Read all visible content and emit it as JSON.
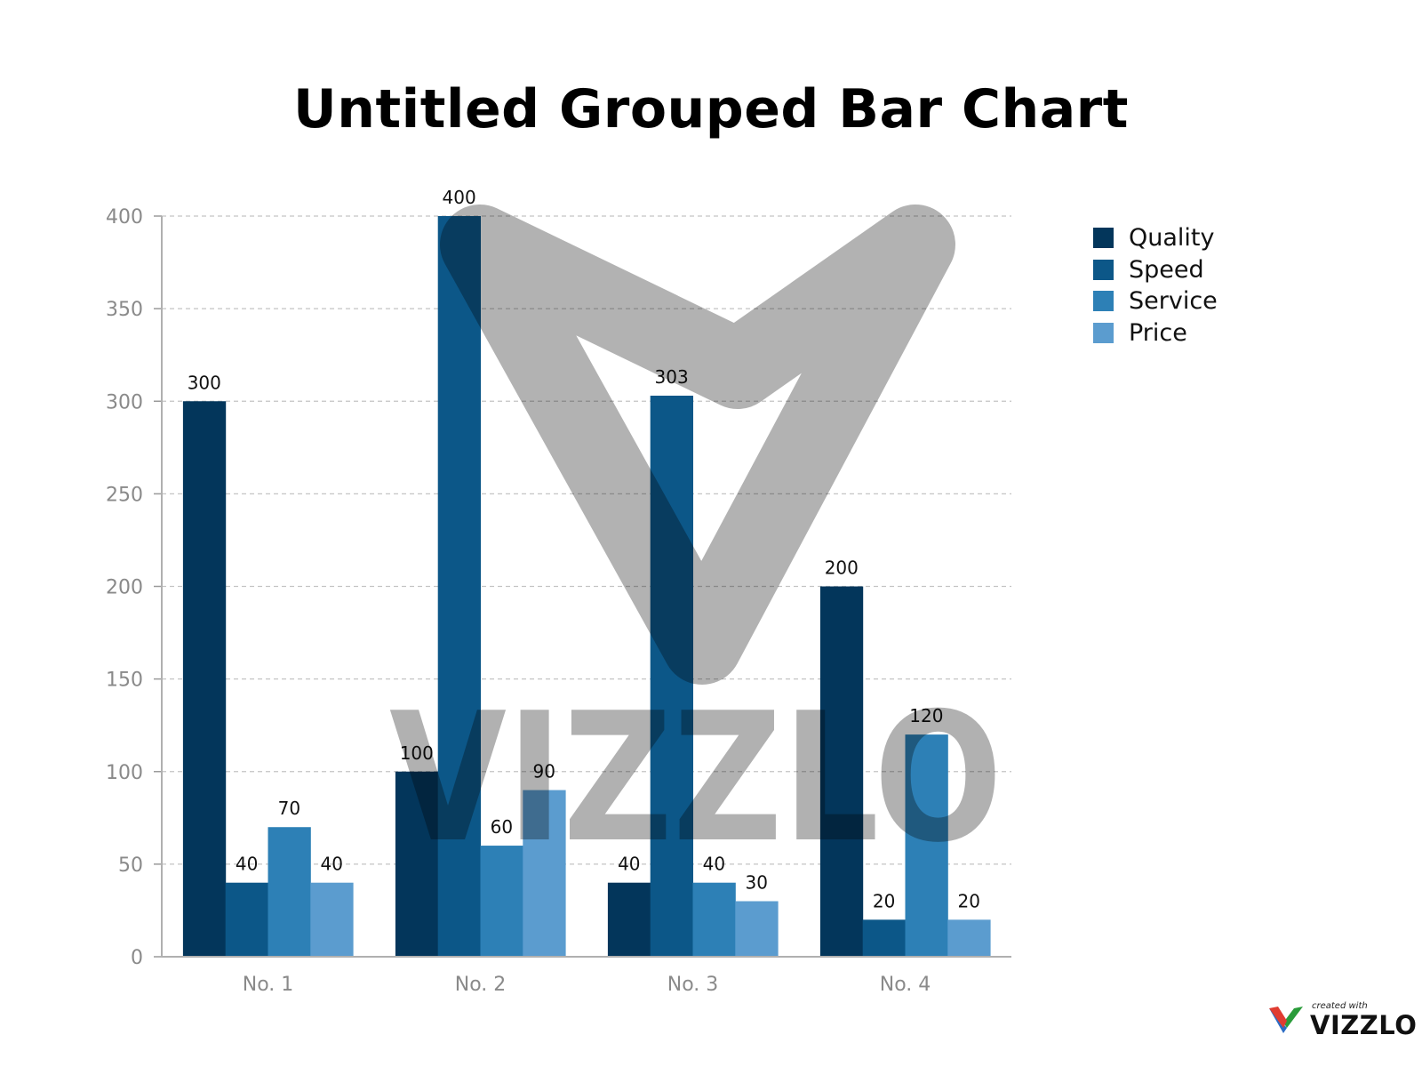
{
  "chart_data": {
    "type": "bar",
    "title": "Untitled Grouped Bar Chart",
    "xlabel": "",
    "ylabel": "",
    "categories": [
      "No. 1",
      "No. 2",
      "No. 3",
      "No. 4"
    ],
    "ylim": [
      0,
      400
    ],
    "yticks": [
      0,
      50,
      100,
      150,
      200,
      250,
      300,
      350,
      400
    ],
    "grid": true,
    "legend_position": "top-right",
    "series": [
      {
        "name": "Quality",
        "color": "#03365b",
        "values": [
          300,
          100,
          40,
          200
        ]
      },
      {
        "name": "Speed",
        "color": "#0c5788",
        "values": [
          40,
          400,
          303,
          20
        ]
      },
      {
        "name": "Service",
        "color": "#2d80b6",
        "values": [
          70,
          60,
          40,
          120
        ]
      },
      {
        "name": "Price",
        "color": "#5b9ccf",
        "values": [
          40,
          90,
          30,
          20
        ]
      }
    ]
  },
  "watermark": {
    "text": "VIZZLO"
  },
  "badge": {
    "caption": "created with",
    "brand": "VIZZLO"
  }
}
